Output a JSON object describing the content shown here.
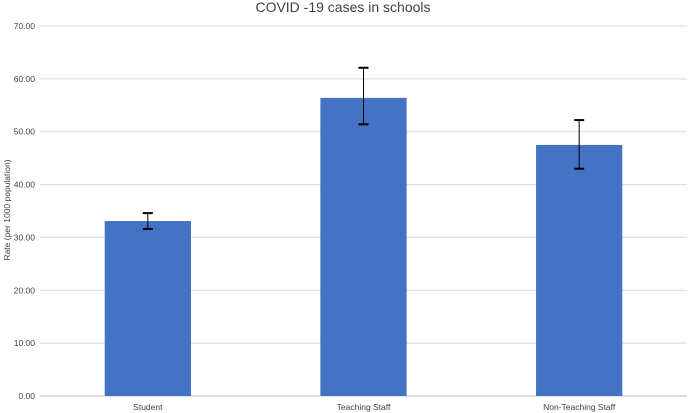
{
  "chart_data": {
    "type": "bar",
    "title": "COVID -19 cases in schools",
    "xlabel": "",
    "ylabel": "Rate (per 1000 population)",
    "ylim": [
      0,
      70
    ],
    "yticks": [
      "0.00",
      "10.00",
      "20.00",
      "30.00",
      "40.00",
      "50.00",
      "60.00",
      "70.00"
    ],
    "categories": [
      "Student",
      "Teaching Staff",
      "Non-Teaching Staff"
    ],
    "values": [
      33.1,
      56.4,
      47.5
    ],
    "error_low": [
      31.6,
      51.4,
      43.0
    ],
    "error_high": [
      34.6,
      62.1,
      52.2
    ],
    "grid": true,
    "bar_color": "#4472c4"
  }
}
